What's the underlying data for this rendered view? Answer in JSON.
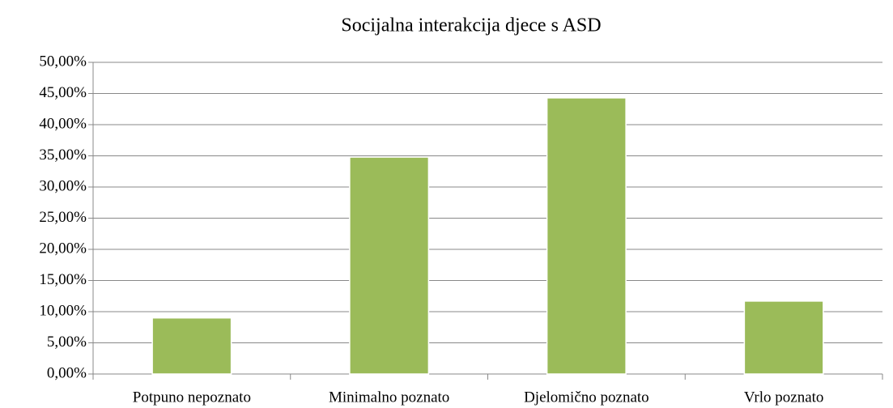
{
  "chart_data": {
    "type": "bar",
    "title": "Socijalna interakcija djece s ASD",
    "categories": [
      "Potpuno nepoznato",
      "Minimalno poznato",
      "Djelomično poznato",
      "Vrlo poznato"
    ],
    "values": [
      9.0,
      34.8,
      44.3,
      11.7
    ],
    "color": "#9bbb59",
    "ylim": [
      0,
      50
    ],
    "yticks": [
      {
        "value": 0,
        "label": "0,00%"
      },
      {
        "value": 5,
        "label": "5,00%"
      },
      {
        "value": 10,
        "label": "10,00%"
      },
      {
        "value": 15,
        "label": "15,00%"
      },
      {
        "value": 20,
        "label": "20,00%"
      },
      {
        "value": 25,
        "label": "25,00%"
      },
      {
        "value": 30,
        "label": "30,00%"
      },
      {
        "value": 35,
        "label": "35,00%"
      },
      {
        "value": 40,
        "label": "40,00%"
      },
      {
        "value": 45,
        "label": "45,00%"
      },
      {
        "value": 50,
        "label": "50,00%"
      }
    ],
    "grid": true
  }
}
